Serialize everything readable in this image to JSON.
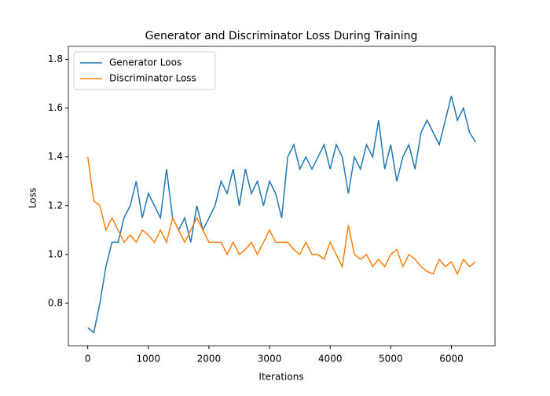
{
  "chart_data": {
    "type": "line",
    "title": "Generator and Discriminator Loss During Training",
    "x_label": "Iterations",
    "y_label": "Loss",
    "x": [
      0,
      100,
      200,
      300,
      400,
      500,
      600,
      700,
      800,
      900,
      1000,
      1100,
      1200,
      1300,
      1400,
      1500,
      1600,
      1700,
      1800,
      1900,
      2000,
      2100,
      2200,
      2300,
      2400,
      2500,
      2600,
      2700,
      2800,
      2900,
      3000,
      3100,
      3200,
      3300,
      3400,
      3500,
      3600,
      3700,
      3800,
      3900,
      4000,
      4100,
      4200,
      4300,
      4400,
      4500,
      4600,
      4700,
      4800,
      4900,
      5000,
      5100,
      5200,
      5300,
      5400,
      5500,
      5600,
      5700,
      5800,
      5900,
      6000,
      6100,
      6200,
      6300,
      6400
    ],
    "series": [
      {
        "name": "Generator Loos",
        "color": "#1f77b4",
        "values": [
          0.7,
          0.68,
          0.8,
          0.95,
          1.05,
          1.05,
          1.15,
          1.2,
          1.3,
          1.15,
          1.25,
          1.2,
          1.15,
          1.35,
          1.15,
          1.1,
          1.15,
          1.05,
          1.2,
          1.1,
          1.15,
          1.2,
          1.3,
          1.25,
          1.35,
          1.2,
          1.35,
          1.25,
          1.3,
          1.2,
          1.3,
          1.25,
          1.15,
          1.4,
          1.45,
          1.35,
          1.4,
          1.35,
          1.4,
          1.45,
          1.35,
          1.45,
          1.4,
          1.25,
          1.4,
          1.35,
          1.45,
          1.4,
          1.55,
          1.35,
          1.45,
          1.3,
          1.4,
          1.45,
          1.35,
          1.5,
          1.55,
          1.5,
          1.45,
          1.55,
          1.65,
          1.55,
          1.6,
          1.5,
          1.46
        ]
      },
      {
        "name": "Discriminator Loss",
        "color": "#ff7f0e",
        "values": [
          1.4,
          1.22,
          1.2,
          1.1,
          1.15,
          1.1,
          1.05,
          1.08,
          1.05,
          1.1,
          1.08,
          1.05,
          1.1,
          1.05,
          1.15,
          1.1,
          1.05,
          1.1,
          1.15,
          1.1,
          1.05,
          1.05,
          1.05,
          1.0,
          1.05,
          1.0,
          1.02,
          1.05,
          1.0,
          1.05,
          1.1,
          1.05,
          1.05,
          1.05,
          1.02,
          1.0,
          1.05,
          1.0,
          1.0,
          0.98,
          1.05,
          1.0,
          0.95,
          1.12,
          1.0,
          0.98,
          1.0,
          0.95,
          0.98,
          0.95,
          1.0,
          1.02,
          0.95,
          1.0,
          0.98,
          0.95,
          0.93,
          0.92,
          0.98,
          0.95,
          0.97,
          0.92,
          0.98,
          0.95,
          0.97
        ]
      }
    ],
    "xlim": [
      -320,
      6720
    ],
    "ylim": [
      0.626,
      1.853
    ],
    "xticks": [
      0,
      1000,
      2000,
      3000,
      4000,
      5000,
      6000
    ],
    "yticks": [
      0.8,
      {
        "value": 1,
        "label": "1.0"
      },
      1.2,
      1.4,
      1.6,
      1.8
    ],
    "legend": "upper left"
  }
}
